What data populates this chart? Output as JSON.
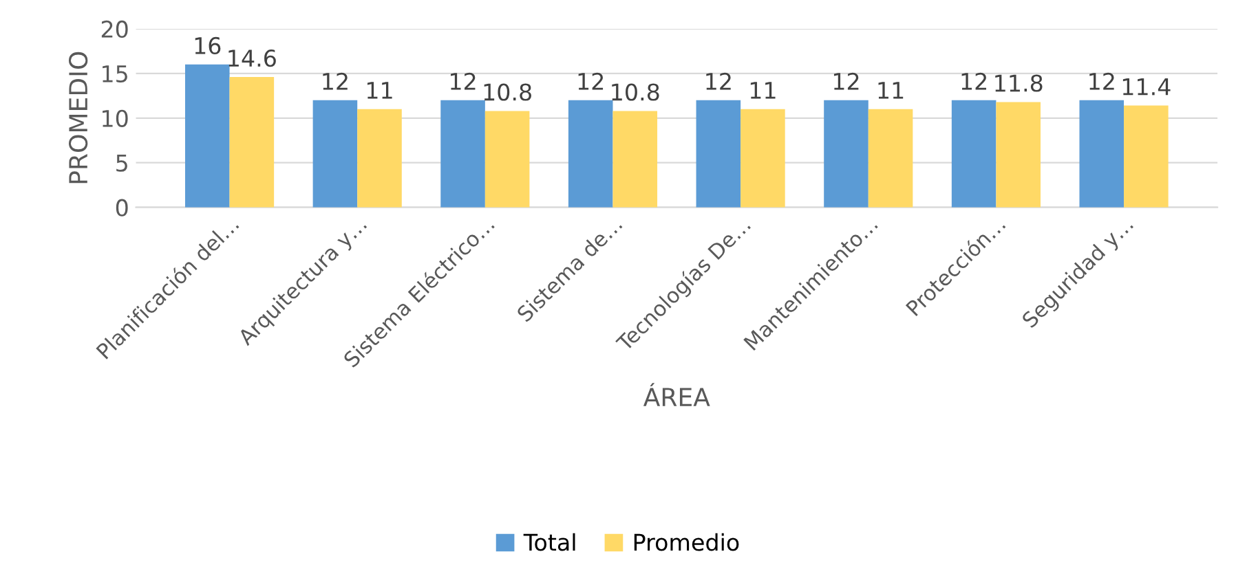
{
  "chart_data": {
    "type": "bar",
    "categories": [
      "Planificación del…",
      "Arquitectura y…",
      "Sistema Eléctrico…",
      "Sistema de…",
      "Tecnologías De…",
      "Mantenimiento…",
      "Protección…",
      "Seguridad y…"
    ],
    "series": [
      {
        "name": "Total",
        "color": "#5b9bd5",
        "values": [
          16,
          12,
          12,
          12,
          12,
          12,
          12,
          12
        ]
      },
      {
        "name": "Promedio",
        "color": "#ffd966",
        "values": [
          14.6,
          11,
          10.8,
          10.8,
          11,
          11,
          11.8,
          11.4
        ]
      }
    ],
    "xlabel": "ÁREA",
    "ylabel": "PROMEDIO",
    "ylim": [
      0,
      20
    ],
    "yticks": [
      0,
      5,
      10,
      15,
      20
    ],
    "grid": "y",
    "legend": "bottom",
    "data_labels": true
  }
}
